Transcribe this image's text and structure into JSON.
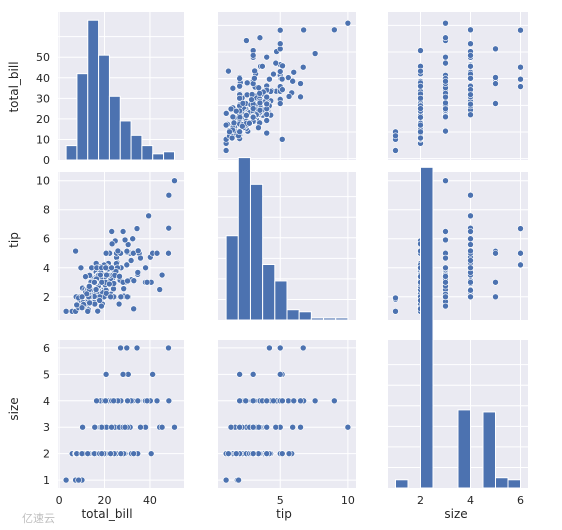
{
  "chart_data": {
    "type": "scatter",
    "layout": "pairplot",
    "variables": [
      "total_bill",
      "tip",
      "size"
    ],
    "colors": {
      "marker": "#4c72b0",
      "panel_bg": "#eaeaf2",
      "grid": "#ffffff",
      "text": "#262626"
    },
    "grid": true,
    "axis_ranges": {
      "total_bill": [
        -0.5,
        55
      ],
      "tip": [
        0.4,
        10.6
      ],
      "size": [
        0.7,
        6.3
      ]
    },
    "ticks": {
      "total_bill": [
        0,
        10,
        20,
        30,
        40,
        50
      ],
      "total_bill_x": [
        0,
        20,
        40
      ],
      "tip": [
        2,
        4,
        6,
        8,
        10
      ],
      "tip_x": [
        5,
        10
      ],
      "size": [
        1,
        2,
        3,
        4,
        5,
        6
      ],
      "size_x": [
        2,
        4,
        6
      ]
    },
    "histograms": {
      "total_bill": {
        "edges": [
          3.07,
          7.84,
          12.61,
          17.38,
          22.15,
          26.92,
          31.69,
          36.46,
          41.23,
          46.0,
          50.81
        ],
        "counts": [
          7,
          42,
          68,
          51,
          31,
          19,
          12,
          7,
          3,
          4
        ]
      },
      "tip": {
        "edges": [
          1.0,
          1.9,
          2.8,
          3.7,
          4.6,
          5.5,
          6.4,
          7.3,
          8.2,
          9.1,
          10.0
        ],
        "counts": [
          41,
          79,
          66,
          27,
          19,
          5,
          4,
          1,
          1,
          1
        ]
      },
      "size": {
        "edges": [
          1.0,
          1.5,
          2.0,
          2.5,
          3.0,
          3.5,
          4.0,
          4.5,
          5.0,
          5.5,
          6.0
        ],
        "counts": [
          4,
          0,
          156,
          0,
          0,
          38,
          0,
          37,
          5,
          4
        ]
      }
    },
    "points": {
      "total_bill": [
        16.99,
        10.34,
        21.01,
        23.68,
        24.59,
        25.29,
        8.77,
        26.88,
        15.04,
        14.78,
        10.27,
        35.26,
        15.42,
        18.43,
        14.83,
        21.58,
        10.33,
        16.29,
        16.97,
        20.65,
        17.92,
        20.29,
        15.77,
        39.42,
        19.82,
        17.81,
        13.37,
        12.69,
        21.7,
        19.65,
        9.55,
        18.35,
        15.06,
        20.69,
        17.78,
        24.06,
        16.31,
        16.93,
        18.69,
        31.27,
        16.04,
        17.46,
        13.94,
        9.68,
        30.4,
        18.29,
        22.23,
        32.4,
        28.55,
        18.04,
        12.54,
        10.29,
        34.81,
        9.94,
        25.56,
        19.49,
        38.01,
        26.41,
        11.24,
        48.27,
        20.29,
        13.81,
        11.02,
        18.29,
        17.59,
        20.08,
        16.45,
        3.07,
        20.23,
        15.01,
        12.02,
        17.07,
        26.86,
        25.28,
        14.73,
        10.51,
        17.92,
        27.2,
        22.76,
        17.29,
        19.44,
        16.66,
        10.07,
        32.68,
        15.98,
        34.83,
        13.03,
        18.28,
        24.71,
        21.16,
        28.97,
        22.49,
        5.75,
        16.32,
        22.75,
        40.17,
        27.28,
        12.03,
        21.01,
        12.46,
        11.35,
        15.38,
        44.3,
        22.42,
        20.92,
        15.36,
        20.49,
        25.21,
        18.24,
        14.31,
        14.0,
        7.25,
        38.07,
        23.95,
        25.71,
        17.31,
        29.93,
        10.65,
        12.43,
        24.08,
        11.69,
        13.42,
        14.26,
        15.95,
        12.48,
        29.8,
        8.52,
        14.52,
        11.38,
        22.82,
        19.08,
        20.27,
        11.17,
        12.26,
        18.26,
        8.51,
        10.33,
        14.15,
        16.0,
        13.16,
        17.47,
        34.3,
        41.19,
        27.05,
        16.43,
        8.35,
        18.64,
        11.87,
        9.78,
        7.51,
        14.07,
        13.13,
        17.26,
        24.55,
        19.77,
        29.85,
        48.17,
        25.0,
        13.39,
        16.49,
        21.5,
        12.66,
        16.21,
        13.81,
        17.51,
        24.52,
        20.76,
        31.71,
        10.59,
        10.63,
        50.81,
        15.81,
        7.25,
        31.85,
        16.82,
        32.9,
        17.89,
        14.48,
        9.6,
        34.63,
        34.65,
        23.33,
        45.35,
        23.17,
        40.55,
        20.69,
        20.9,
        30.46,
        18.15,
        23.1,
        15.69,
        19.81,
        28.44,
        15.48,
        16.58,
        7.56,
        10.34,
        43.11,
        13.0,
        13.51,
        18.71,
        12.74,
        13.0,
        16.4,
        20.53,
        16.47,
        26.59,
        38.73,
        24.27,
        12.76,
        30.06,
        25.89,
        48.33,
        13.27,
        28.17,
        12.9,
        28.15,
        11.59,
        7.74,
        30.14,
        12.16,
        13.42,
        8.58,
        15.98,
        13.42,
        16.27,
        10.09,
        20.45,
        13.28,
        22.12,
        24.01,
        15.69,
        11.61,
        10.77,
        15.53,
        10.07,
        12.6,
        32.83,
        35.83,
        29.03,
        27.18,
        22.67,
        17.82,
        18.78
      ],
      "tip": [
        1.01,
        1.66,
        3.5,
        3.31,
        3.61,
        4.71,
        2.0,
        3.12,
        1.96,
        3.23,
        1.71,
        5.0,
        1.57,
        3.0,
        3.02,
        3.92,
        1.67,
        3.71,
        3.5,
        3.35,
        4.08,
        2.75,
        2.23,
        7.58,
        3.18,
        2.34,
        2.0,
        2.0,
        4.3,
        3.0,
        1.45,
        2.5,
        3.0,
        2.45,
        3.27,
        3.6,
        2.0,
        3.07,
        2.31,
        5.0,
        2.24,
        2.54,
        3.06,
        1.32,
        5.6,
        3.0,
        5.0,
        6.0,
        2.05,
        3.0,
        2.5,
        2.6,
        5.2,
        1.56,
        4.34,
        3.51,
        3.0,
        1.5,
        1.76,
        6.73,
        3.21,
        2.0,
        1.98,
        3.76,
        2.64,
        3.15,
        2.47,
        1.0,
        2.01,
        2.09,
        1.97,
        3.0,
        3.14,
        5.0,
        2.2,
        1.25,
        3.08,
        4.0,
        3.0,
        2.71,
        3.0,
        3.4,
        1.83,
        5.0,
        2.03,
        5.17,
        2.0,
        4.0,
        5.85,
        3.0,
        3.0,
        3.5,
        1.0,
        4.3,
        3.25,
        4.73,
        4.0,
        1.5,
        3.0,
        1.5,
        2.5,
        3.0,
        2.5,
        3.48,
        4.08,
        1.64,
        4.06,
        4.29,
        3.76,
        4.0,
        3.0,
        1.0,
        4.0,
        2.55,
        4.0,
        3.5,
        5.07,
        1.5,
        1.8,
        2.92,
        2.31,
        1.68,
        2.5,
        2.0,
        2.52,
        4.2,
        1.48,
        2.0,
        2.0,
        2.18,
        1.5,
        2.83,
        1.5,
        2.0,
        3.25,
        1.25,
        2.0,
        2.0,
        2.0,
        2.75,
        3.5,
        6.7,
        5.0,
        5.0,
        2.3,
        1.5,
        1.36,
        1.63,
        1.73,
        2.0,
        2.5,
        2.0,
        2.74,
        2.0,
        2.0,
        5.14,
        5.0,
        3.75,
        2.61,
        2.0,
        3.5,
        2.5,
        2.0,
        2.0,
        3.0,
        3.48,
        2.24,
        4.5,
        1.61,
        2.0,
        10.0,
        3.16,
        5.15,
        3.18,
        4.0,
        3.11,
        2.0,
        2.0,
        4.0,
        3.55,
        3.68,
        5.65,
        3.5,
        6.5,
        3.0,
        5.0,
        3.5,
        2.0,
        3.5,
        4.0,
        1.5,
        4.19,
        2.56,
        2.02,
        4.0,
        1.44,
        2.0,
        5.0,
        2.0,
        2.0,
        4.0,
        2.01,
        2.0,
        2.5,
        4.0,
        3.23,
        3.41,
        3.0,
        2.03,
        2.23,
        2.0,
        5.16,
        9.0,
        2.5,
        6.5,
        1.1,
        3.0,
        1.5,
        1.44,
        3.09,
        2.2,
        3.48,
        1.92,
        3.0,
        1.58,
        2.5,
        2.0,
        3.0,
        2.72,
        2.88,
        2.0,
        3.0,
        3.39,
        1.47,
        3.0,
        1.25,
        1.0,
        1.17,
        4.67,
        5.92,
        2.0,
        2.0,
        1.75,
        3.0
      ],
      "size": [
        2,
        3,
        3,
        2,
        4,
        4,
        2,
        4,
        2,
        2,
        2,
        4,
        2,
        4,
        2,
        2,
        3,
        3,
        3,
        3,
        2,
        2,
        2,
        4,
        2,
        4,
        2,
        2,
        2,
        2,
        2,
        4,
        2,
        4,
        2,
        3,
        3,
        3,
        3,
        3,
        3,
        2,
        2,
        2,
        4,
        2,
        2,
        4,
        3,
        2,
        2,
        2,
        4,
        2,
        4,
        2,
        4,
        2,
        2,
        4,
        2,
        2,
        2,
        4,
        3,
        3,
        2,
        1,
        2,
        2,
        2,
        3,
        2,
        2,
        2,
        2,
        2,
        4,
        2,
        2,
        2,
        2,
        1,
        2,
        2,
        4,
        2,
        2,
        2,
        2,
        2,
        2,
        2,
        2,
        2,
        4,
        2,
        2,
        2,
        2,
        2,
        2,
        3,
        2,
        2,
        2,
        2,
        2,
        2,
        2,
        2,
        1,
        3,
        2,
        3,
        2,
        4,
        2,
        2,
        4,
        2,
        2,
        2,
        2,
        2,
        6,
        2,
        2,
        2,
        3,
        2,
        2,
        2,
        2,
        2,
        2,
        2,
        2,
        2,
        2,
        2,
        6,
        5,
        6,
        2,
        2,
        3,
        2,
        2,
        2,
        2,
        2,
        3,
        4,
        4,
        5,
        6,
        4,
        2,
        4,
        4,
        2,
        3,
        2,
        2,
        3,
        2,
        4,
        2,
        2,
        3,
        2,
        2,
        2,
        2,
        2,
        2,
        2,
        2,
        2,
        4,
        2,
        3,
        4,
        2,
        5,
        3,
        5,
        3,
        3,
        2,
        2,
        2,
        2,
        2,
        2,
        2,
        4,
        2,
        2,
        3,
        2,
        2,
        2,
        4,
        3,
        3,
        4,
        2,
        2,
        3,
        4,
        4,
        2,
        3,
        2,
        5,
        2,
        2,
        4,
        2,
        2,
        1,
        3,
        2,
        2,
        2,
        4,
        2,
        2,
        4,
        3,
        2,
        2,
        2,
        2,
        2,
        2,
        3,
        3,
        2,
        2,
        2,
        2
      ]
    },
    "axis_labels": {
      "total_bill": "total_bill",
      "tip": "tip",
      "size": "size"
    },
    "watermark": "亿速云"
  }
}
